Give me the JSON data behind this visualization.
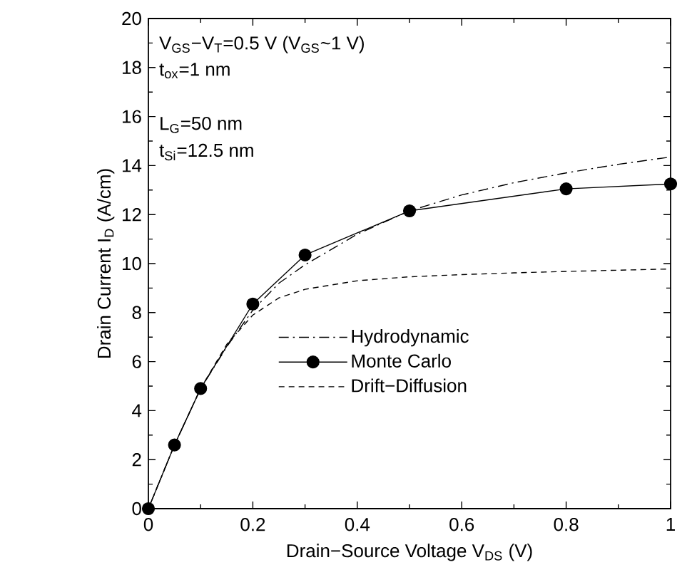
{
  "chart_data": {
    "type": "line",
    "xlabel": "Drain−Source Voltage V$_{DS}$ (V)",
    "ylabel": "Drain Current I$_{D}$ (A/cm)",
    "xlim": [
      0,
      1
    ],
    "xticks": [
      0,
      0.2,
      0.4,
      0.6,
      0.8,
      1
    ],
    "ylim": [
      0,
      20
    ],
    "yticks": [
      0,
      2,
      4,
      6,
      8,
      10,
      12,
      14,
      16,
      18,
      20
    ],
    "legend": "center",
    "grid": false,
    "annotations": [
      "V$_{GS}$−V$_{T}$=0.5 V (V$_{GS}$~1 V)",
      "t$_{ox}$=1 nm",
      "L$_{G}$=50 nm",
      "t$_{Si}$=12.5 nm"
    ],
    "series": [
      {
        "name": "Hydrodynamic",
        "color": "#000000",
        "line_style": "dashdot",
        "marker": "none",
        "x": [
          0,
          0.05,
          0.1,
          0.15,
          0.2,
          0.25,
          0.3,
          0.4,
          0.5,
          0.6,
          0.7,
          0.8,
          0.9,
          1
        ],
        "values": [
          0,
          2.6,
          4.9,
          6.6,
          8.1,
          9.2,
          9.95,
          11.2,
          12.15,
          12.8,
          13.3,
          13.7,
          14.05,
          14.35
        ]
      },
      {
        "name": "Monte Carlo",
        "color": "#000000",
        "line_style": "solid",
        "marker": "circle",
        "x": [
          0,
          0.05,
          0.1,
          0.2,
          0.3,
          0.5,
          0.8,
          1
        ],
        "values": [
          0,
          2.6,
          4.9,
          8.35,
          10.35,
          12.15,
          13.05,
          13.25
        ]
      },
      {
        "name": "Drift−Diffusion",
        "color": "#000000",
        "line_style": "dashed",
        "marker": "none",
        "x": [
          0,
          0.05,
          0.1,
          0.15,
          0.2,
          0.25,
          0.3,
          0.4,
          0.5,
          0.6,
          0.7,
          0.8,
          0.9,
          1
        ],
        "values": [
          0,
          2.6,
          4.9,
          6.7,
          7.9,
          8.6,
          8.95,
          9.3,
          9.46,
          9.55,
          9.62,
          9.68,
          9.73,
          9.78
        ]
      }
    ]
  }
}
